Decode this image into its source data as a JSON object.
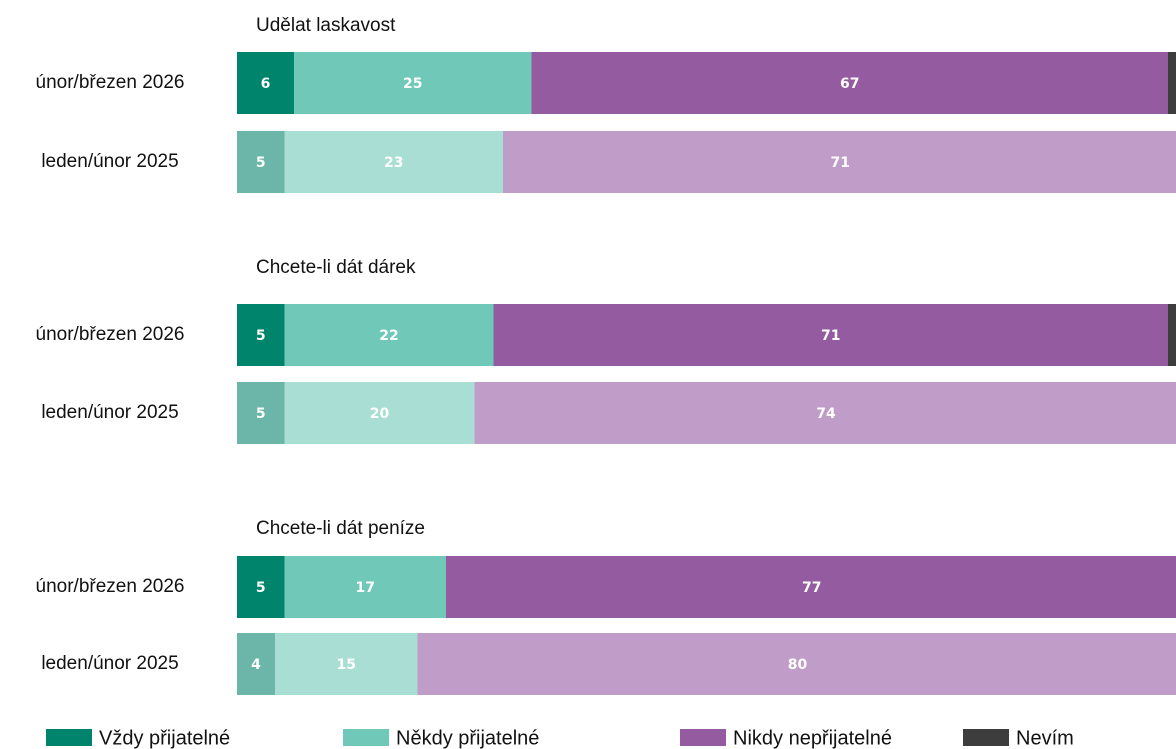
{
  "chart_data": {
    "type": "bar",
    "orientation": "horizontal",
    "stacked": true,
    "panel_titles": [
      "Udělat laskavost",
      "Chcete-li dát dárek",
      "Chcete-li dát peníze"
    ],
    "categories": [
      "únor/březen 2026",
      "leden/únor 2025",
      "únor/březen 2026",
      "leden/únor 2025",
      "únor/březen 2026",
      "leden/únor 2025"
    ],
    "xlim": [
      0,
      100
    ],
    "series": [
      {
        "name": "Vždy přijatelné",
        "color": "#00846c",
        "light_color": "#6bb6a8",
        "values": [
          6,
          5,
          5,
          5,
          5,
          4
        ]
      },
      {
        "name": "Někdy přijatelné",
        "color": "#6fc8b8",
        "light_color": "#a9ded5",
        "values": [
          25,
          23,
          22,
          20,
          17,
          15
        ]
      },
      {
        "name": "Nikdy nepřijatelné",
        "color": "#955ba0",
        "light_color": "#c09dc8",
        "values": [
          67,
          71,
          71,
          74,
          77,
          80
        ]
      },
      {
        "name": "Nevím",
        "color": "#3d3d3d",
        "light_color": "#8a8a8a",
        "values": [
          2,
          1,
          2,
          1,
          1,
          1
        ]
      }
    ]
  }
}
